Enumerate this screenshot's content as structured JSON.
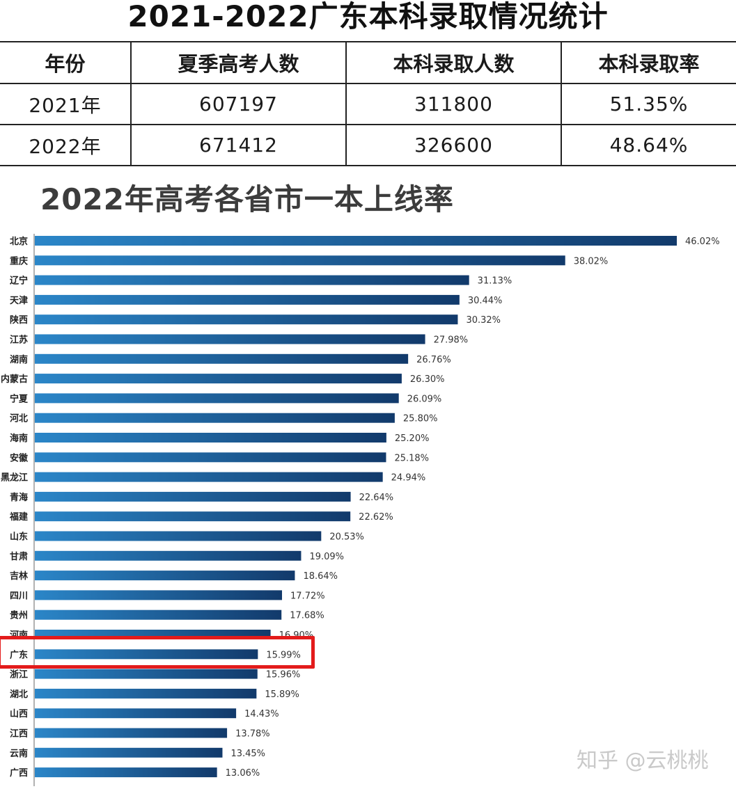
{
  "title": "2021-2022广东本科录取情况统计",
  "table": {
    "headers": [
      "年份",
      "夏季高考人数",
      "本科录取人数",
      "本科录取率"
    ],
    "rows": [
      [
        "2021年",
        "607197",
        "311800",
        "51.35%"
      ],
      [
        "2022年",
        "671412",
        "326600",
        "48.64%"
      ]
    ]
  },
  "watermark": "知乎 @云桃桃",
  "colors": {
    "bar_light": "#2b86c8",
    "bar_dark": "#123a6b",
    "highlight": "#e31b1b"
  },
  "chart_data": {
    "type": "bar",
    "orientation": "horizontal",
    "title": "2022年高考各省市一本上线率",
    "categories": [
      "北京",
      "重庆",
      "辽宁",
      "天津",
      "陕西",
      "江苏",
      "湖南",
      "内蒙古",
      "宁夏",
      "河北",
      "海南",
      "安徽",
      "黑龙江",
      "青海",
      "福建",
      "山东",
      "甘肃",
      "吉林",
      "四川",
      "贵州",
      "河南",
      "广东",
      "浙江",
      "湖北",
      "山西",
      "江西",
      "云南",
      "广西"
    ],
    "values": [
      46.02,
      38.02,
      31.13,
      30.44,
      30.32,
      27.98,
      26.76,
      26.3,
      26.09,
      25.8,
      25.2,
      25.18,
      24.94,
      22.64,
      22.62,
      20.53,
      19.09,
      18.64,
      17.72,
      17.68,
      16.9,
      15.99,
      15.96,
      15.89,
      14.43,
      13.78,
      13.45,
      13.06
    ],
    "labels": [
      "46.02%",
      "38.02%",
      "31.13%",
      "30.44%",
      "30.32%",
      "27.98%",
      "26.76%",
      "26.30%",
      "26.09%",
      "25.80%",
      "25.20%",
      "25.18%",
      "24.94%",
      "22.64%",
      "22.62%",
      "20.53%",
      "19.09%",
      "18.64%",
      "17.72%",
      "17.68%",
      "16.90%",
      "15.99%",
      "15.96%",
      "15.89%",
      "14.43%",
      "13.78%",
      "13.45%",
      "13.06%"
    ],
    "highlighted": "广东",
    "xlim": [
      0,
      46.02
    ],
    "grid": false,
    "legend": "none"
  }
}
